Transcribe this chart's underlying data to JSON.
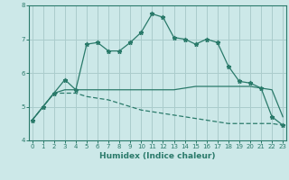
{
  "xlabel": "Humidex (Indice chaleur)",
  "background_color": "#cce8e8",
  "grid_color": "#aacccc",
  "line_color": "#2a7a6a",
  "x_values": [
    0,
    1,
    2,
    3,
    4,
    5,
    6,
    7,
    8,
    9,
    10,
    11,
    12,
    13,
    14,
    15,
    16,
    17,
    18,
    19,
    20,
    21,
    22,
    23
  ],
  "series1": [
    4.6,
    5.0,
    5.4,
    5.8,
    5.5,
    6.85,
    6.9,
    6.65,
    6.65,
    6.9,
    7.2,
    7.75,
    7.65,
    7.05,
    7.0,
    6.85,
    7.0,
    6.9,
    6.2,
    5.75,
    5.7,
    5.55,
    4.7,
    4.45
  ],
  "series2": [
    4.6,
    5.0,
    5.4,
    5.5,
    5.5,
    5.5,
    5.5,
    5.5,
    5.5,
    5.5,
    5.5,
    5.5,
    5.5,
    5.5,
    5.55,
    5.6,
    5.6,
    5.6,
    5.6,
    5.6,
    5.6,
    5.55,
    5.5,
    4.7
  ],
  "series3": [
    4.6,
    5.0,
    5.4,
    5.4,
    5.4,
    5.3,
    5.25,
    5.2,
    5.1,
    5.0,
    4.9,
    4.85,
    4.8,
    4.75,
    4.7,
    4.65,
    4.6,
    4.55,
    4.5,
    4.5,
    4.5,
    4.5,
    4.5,
    4.45
  ],
  "ylim": [
    4.0,
    8.0
  ],
  "xlim": [
    -0.3,
    23.3
  ],
  "yticks": [
    4,
    5,
    6,
    7,
    8
  ],
  "xticks": [
    0,
    1,
    2,
    3,
    4,
    5,
    6,
    7,
    8,
    9,
    10,
    11,
    12,
    13,
    14,
    15,
    16,
    17,
    18,
    19,
    20,
    21,
    22,
    23
  ]
}
